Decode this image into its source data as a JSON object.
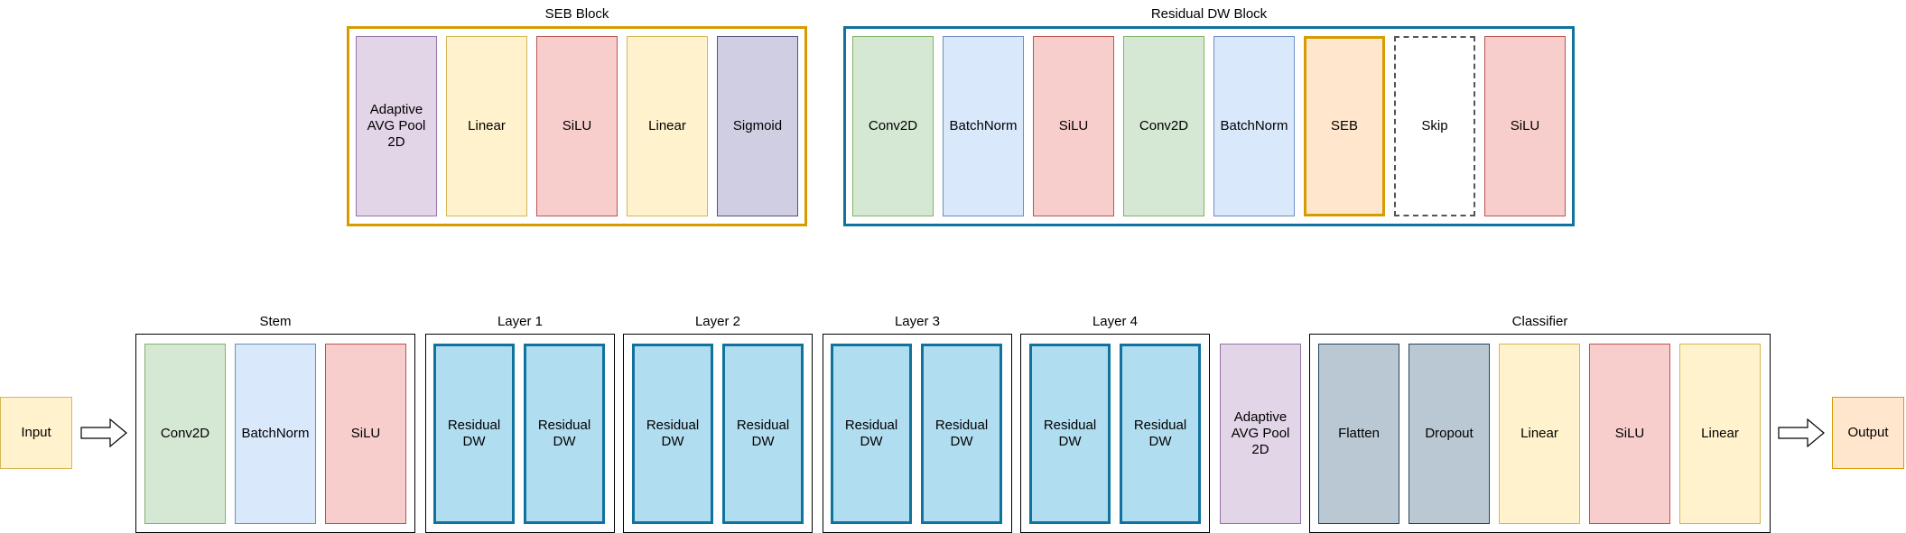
{
  "colors": {
    "purple": "#e1d5e7",
    "purple_border": "#9673a6",
    "yellow": "#fff2cc",
    "yellow_border": "#d6b656",
    "red": "#f8cecc",
    "red_border": "#b85450",
    "green": "#d5e8d4",
    "green_border": "#82b366",
    "blue": "#dae8fc",
    "blue_border": "#6c8ebf",
    "lavender": "#d0cee2",
    "lavender_border": "#56517e",
    "orange": "#ffe6cc",
    "orange_accent": "#d79b00",
    "cyan": "#b1ddf0",
    "cyan_border": "#10739e",
    "gray": "#bac8d3",
    "gray_border": "#23445d",
    "seb_frame": "#d79b00",
    "residual_frame": "#10739e"
  },
  "seb_block": {
    "title": "SEB Block",
    "items": [
      "Adaptive\nAVG Pool\n2D",
      "Linear",
      "SiLU",
      "Linear",
      "Sigmoid"
    ]
  },
  "residual_block": {
    "title": "Residual DW Block",
    "items": [
      "Conv2D",
      "BatchNorm",
      "SiLU",
      "Conv2D",
      "BatchNorm",
      "SEB",
      "Skip",
      "SiLU"
    ]
  },
  "pipeline": {
    "input": "Input",
    "output": "Output",
    "stem": {
      "title": "Stem",
      "items": [
        "Conv2D",
        "BatchNorm",
        "SiLU"
      ]
    },
    "layers": [
      {
        "title": "Layer 1",
        "items": [
          "Residual\nDW",
          "Residual\nDW"
        ]
      },
      {
        "title": "Layer 2",
        "items": [
          "Residual\nDW",
          "Residual\nDW"
        ]
      },
      {
        "title": "Layer 3",
        "items": [
          "Residual\nDW",
          "Residual\nDW"
        ]
      },
      {
        "title": "Layer 4",
        "items": [
          "Residual\nDW",
          "Residual\nDW"
        ]
      }
    ],
    "pool": "Adaptive\nAVG Pool\n2D",
    "classifier": {
      "title": "Classifier",
      "items": [
        "Flatten",
        "Dropout",
        "Linear",
        "SiLU",
        "Linear"
      ]
    }
  }
}
